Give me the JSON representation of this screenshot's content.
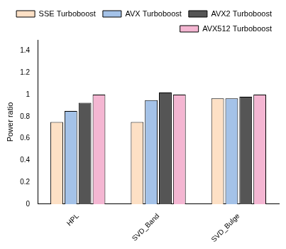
{
  "chart_data": {
    "type": "bar",
    "y_label": "Power ratio",
    "categories": [
      "HPL",
      "SVD_Band",
      "SVD_Bulge"
    ],
    "series": [
      {
        "name": "SSE Turboboost",
        "color": "#fde0c5",
        "values": [
          0.75,
          0.75,
          0.965
        ]
      },
      {
        "name": "AVX Turboboost",
        "color": "#a4c2e8",
        "values": [
          0.85,
          0.95,
          0.965
        ]
      },
      {
        "name": "AVX2 Turboboost",
        "color": "#555555",
        "values": [
          0.925,
          1.02,
          0.98
        ]
      },
      {
        "name": "AVX512 Turboboost",
        "color": "#f4b6d2",
        "values": [
          1.0,
          1.0,
          1.0
        ]
      }
    ],
    "ylim": [
      0,
      1.5
    ],
    "yticks": [
      0,
      0.2,
      0.4,
      0.6,
      0.8,
      1,
      1.2,
      1.4
    ],
    "grid": false,
    "legend": "top-right"
  }
}
